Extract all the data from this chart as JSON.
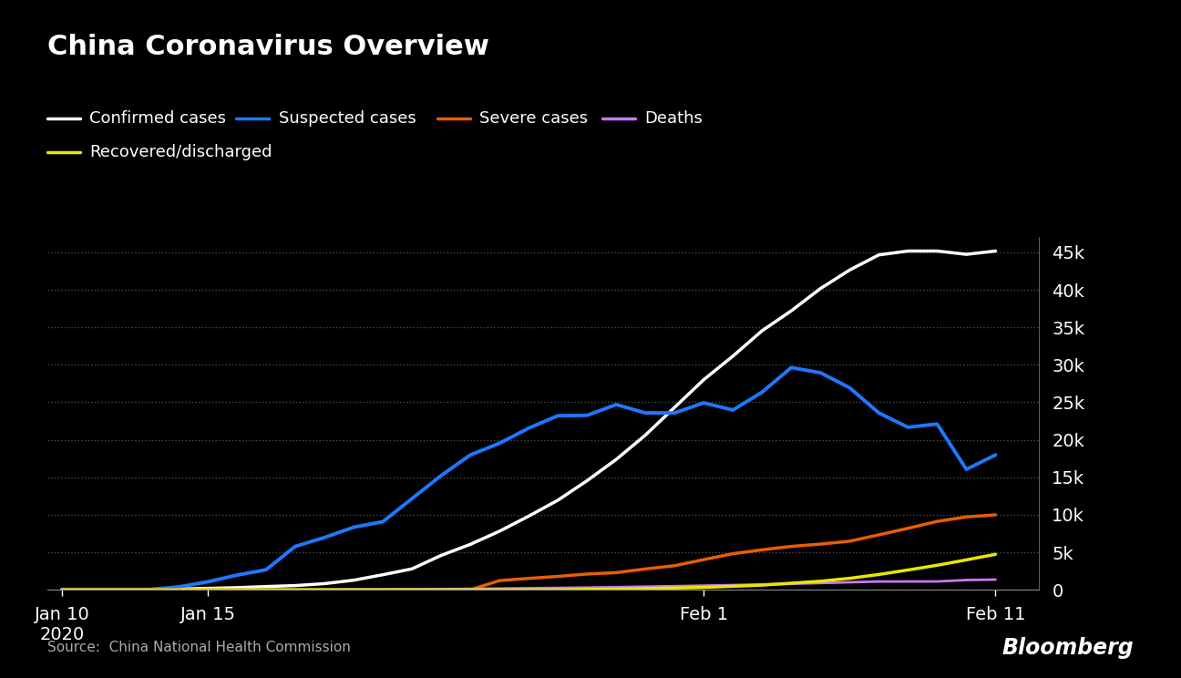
{
  "title": "China Coronavirus Overview",
  "background_color": "#000000",
  "text_color": "#ffffff",
  "source_text": "Source:  China National Health Commission",
  "bloomberg_text": "Bloomberg",
  "y_tick_labels": [
    "0",
    "5k",
    "10k",
    "15k",
    "20k",
    "25k",
    "30k",
    "35k",
    "40k",
    "45k"
  ],
  "y_tick_values": [
    0,
    5000,
    10000,
    15000,
    20000,
    25000,
    30000,
    35000,
    40000,
    45000
  ],
  "ylim": [
    0,
    47000
  ],
  "xlim": [
    9.5,
    43.5
  ],
  "x_tick_labels": [
    "Jan 10\n2020",
    "Jan 15",
    "Feb 1",
    "Feb 11"
  ],
  "x_tick_positions": [
    10,
    15,
    32,
    42
  ],
  "series": {
    "confirmed": {
      "label": "Confirmed cases",
      "color": "#ffffff",
      "linewidth": 2.5,
      "x": [
        10,
        11,
        12,
        13,
        14,
        15,
        16,
        17,
        18,
        19,
        20,
        21,
        22,
        23,
        24,
        25,
        26,
        27,
        28,
        29,
        30,
        31,
        32,
        33,
        34,
        35,
        36,
        37,
        38,
        39,
        40,
        41,
        42
      ],
      "y": [
        41,
        41,
        45,
        62,
        121,
        198,
        291,
        440,
        571,
        830,
        1287,
        2014,
        2798,
        4593,
        6065,
        7818,
        9826,
        11948,
        14549,
        17387,
        20627,
        24324,
        28018,
        31161,
        34546,
        37198,
        40171,
        42638,
        44653,
        45171,
        45171,
        44730,
        45171
      ]
    },
    "suspected": {
      "label": "Suspected cases",
      "color": "#1e78ff",
      "linewidth": 2.8,
      "x": [
        10,
        11,
        12,
        13,
        14,
        15,
        16,
        17,
        18,
        19,
        20,
        21,
        22,
        23,
        24,
        25,
        26,
        27,
        28,
        29,
        30,
        31,
        32,
        33,
        34,
        35,
        36,
        37,
        38,
        39,
        40,
        41,
        42
      ],
      "y": [
        57,
        57,
        57,
        57,
        393,
        1072,
        1965,
        2684,
        5794,
        6973,
        8351,
        9080,
        12167,
        15238,
        17988,
        19544,
        21558,
        23214,
        23260,
        24702,
        23589,
        23589,
        24928,
        23975,
        26359,
        29631,
        28942,
        26944,
        23589,
        21675,
        22112,
        16067,
        17988
      ]
    },
    "severe": {
      "label": "Severe cases",
      "color": "#e85d04",
      "linewidth": 2.5,
      "x": [
        10,
        11,
        12,
        13,
        14,
        15,
        16,
        17,
        18,
        19,
        20,
        21,
        22,
        23,
        24,
        25,
        26,
        27,
        28,
        29,
        30,
        31,
        32,
        33,
        34,
        35,
        36,
        37,
        38,
        39,
        40,
        41,
        42
      ],
      "y": [
        0,
        0,
        0,
        0,
        0,
        0,
        0,
        0,
        0,
        0,
        0,
        0,
        0,
        0,
        0,
        1239,
        1527,
        1795,
        2110,
        2296,
        2788,
        3219,
        4031,
        4821,
        5336,
        5794,
        6101,
        6484,
        7333,
        8204,
        9126,
        9722,
        10000
      ]
    },
    "deaths": {
      "label": "Deaths",
      "color": "#cc77ff",
      "linewidth": 2.0,
      "x": [
        10,
        11,
        12,
        13,
        14,
        15,
        16,
        17,
        18,
        19,
        20,
        21,
        22,
        23,
        24,
        25,
        26,
        27,
        28,
        29,
        30,
        31,
        32,
        33,
        34,
        35,
        36,
        37,
        38,
        39,
        40,
        41,
        42
      ],
      "y": [
        1,
        1,
        2,
        2,
        3,
        4,
        6,
        9,
        17,
        25,
        41,
        56,
        80,
        106,
        132,
        170,
        213,
        259,
        304,
        361,
        425,
        491,
        563,
        636,
        722,
        811,
        908,
        1016,
        1113,
        1116,
        1118,
        1310,
        1370
      ]
    },
    "recovered": {
      "label": "Recovered/discharged",
      "color": "#e8e800",
      "linewidth": 2.5,
      "x": [
        10,
        11,
        12,
        13,
        14,
        15,
        16,
        17,
        18,
        19,
        20,
        21,
        22,
        23,
        24,
        25,
        26,
        27,
        28,
        29,
        30,
        31,
        32,
        33,
        34,
        35,
        36,
        37,
        38,
        39,
        40,
        41,
        42
      ],
      "y": [
        0,
        0,
        0,
        0,
        0,
        0,
        0,
        0,
        0,
        0,
        0,
        0,
        0,
        0,
        0,
        0,
        0,
        0,
        63,
        88,
        171,
        243,
        328,
        475,
        632,
        892,
        1153,
        1540,
        2050,
        2649,
        3281,
        3996,
        4740
      ]
    }
  },
  "legend": [
    {
      "label": "Confirmed cases",
      "color": "#ffffff"
    },
    {
      "label": "Suspected cases",
      "color": "#1e78ff"
    },
    {
      "label": "Severe cases",
      "color": "#e85d04"
    },
    {
      "label": "Deaths",
      "color": "#cc77ff"
    },
    {
      "label": "Recovered/discharged",
      "color": "#e8e800"
    }
  ],
  "grid_color": "#555555",
  "axis_color": "#888888"
}
